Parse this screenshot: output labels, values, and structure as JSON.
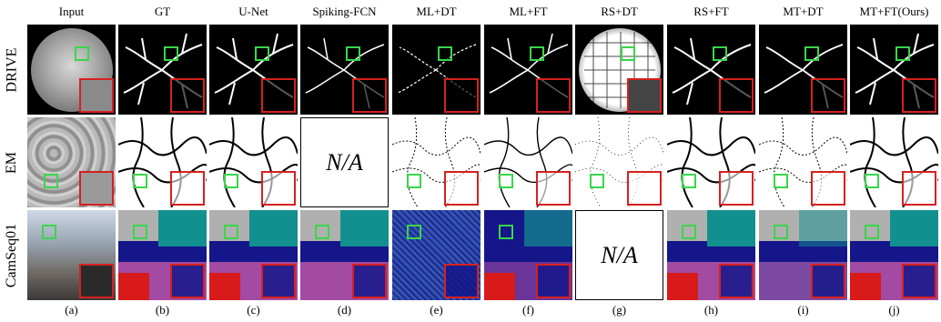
{
  "columns": [
    {
      "header": "Input",
      "caption": "(a)"
    },
    {
      "header": "GT",
      "caption": "(b)"
    },
    {
      "header": "U-Net",
      "caption": "(c)"
    },
    {
      "header": "Spiking-FCN",
      "caption": "(d)"
    },
    {
      "header": "ML+DT",
      "caption": "(e)"
    },
    {
      "header": "ML+FT",
      "caption": "(f)"
    },
    {
      "header": "RS+DT",
      "caption": "(g)"
    },
    {
      "header": "RS+FT",
      "caption": "(h)"
    },
    {
      "header": "MT+DT",
      "caption": "(i)"
    },
    {
      "header": "MT+FT(Ours)",
      "caption": "(j)"
    }
  ],
  "rows": [
    {
      "label": "DRIVE"
    },
    {
      "label": "EM"
    },
    {
      "label": "CamSeq01"
    }
  ],
  "na_text": "N/A",
  "colors": {
    "green_box": "#39d64a",
    "red_box": "#d62020",
    "cam_sky": "#b0b0b0",
    "cam_building": "#12908f",
    "cam_road": "#a34aa3",
    "cam_sidewalk": "#d81a1a",
    "cam_background": "#14168a"
  }
}
